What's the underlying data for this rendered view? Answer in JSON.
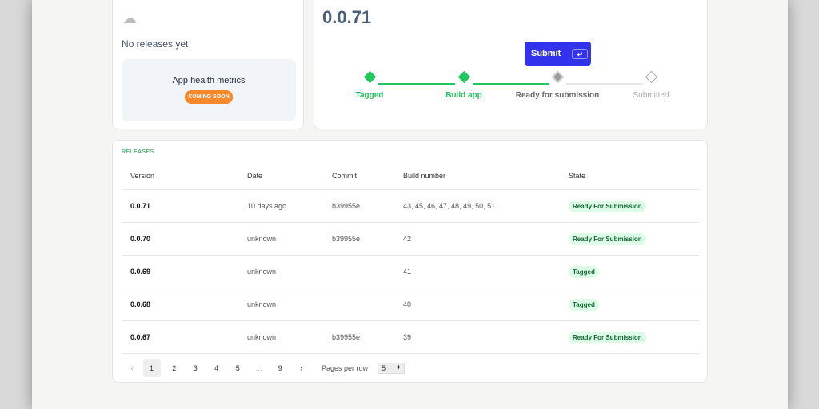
{
  "left_card": {
    "empty_text": "No releases yet",
    "health_title": "App health metrics",
    "health_badge": "COMING SOON"
  },
  "release": {
    "version": "0.0.71",
    "submit_label": "Submit",
    "submit_shortcut": "↵",
    "steps": [
      {
        "label": "Tagged",
        "state": "done"
      },
      {
        "label": "Build app",
        "state": "done"
      },
      {
        "label": "Ready for submission",
        "state": "current"
      },
      {
        "label": "Submitted",
        "state": "pending"
      }
    ]
  },
  "colors": {
    "accent": "#3232ec",
    "success": "#22c55e",
    "coming_soon": "#f7892b"
  },
  "releases": {
    "title": "RELEASES",
    "columns": [
      "Version",
      "Date",
      "Commit",
      "Build number",
      "State"
    ],
    "rows": [
      [
        "0.0.71",
        "10 days ago",
        "b39955e",
        "43, 45, 46, 47, 48, 49, 50, 51",
        "Ready For Submission"
      ],
      [
        "0.0.70",
        "unknown",
        "b39955e",
        "42",
        "Ready For Submission"
      ],
      [
        "0.0.69",
        "unknown",
        "",
        "41",
        "Tagged"
      ],
      [
        "0.0.68",
        "unknown",
        "",
        "40",
        "Tagged"
      ],
      [
        "0.0.67",
        "unknown",
        "b39955e",
        "39",
        "Ready For Submission"
      ]
    ]
  },
  "pagination": {
    "pages": [
      "1",
      "2",
      "3",
      "4",
      "5",
      "…",
      "9"
    ],
    "current": "1",
    "per_page_label": "Pages per row",
    "per_page": "5"
  }
}
